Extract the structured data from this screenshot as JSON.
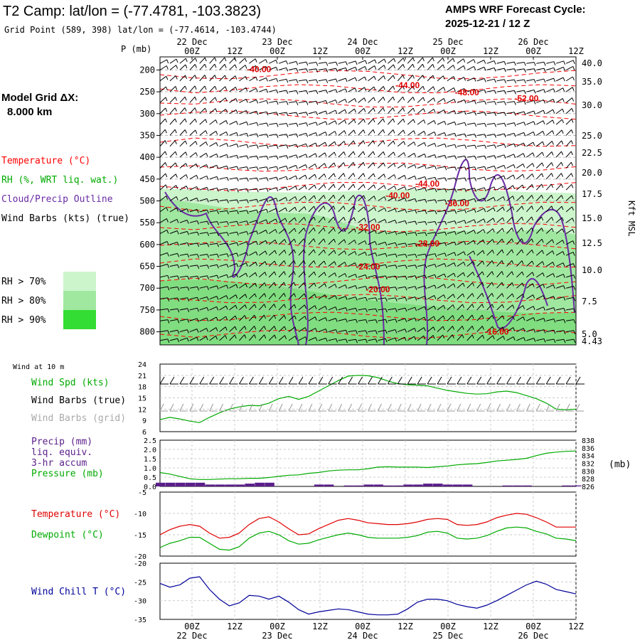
{
  "header": {
    "title": "T2 Camp:  lat/lon = (-77.4781, -103.3823)",
    "subtitle": "Grid Point (589, 398) lat/lon = (-77.4614, -103.4744)",
    "cycle_label": "AMPS WRF Forecast Cycle:",
    "cycle_value": "2025-12-21 / 12  Z"
  },
  "model_grid": {
    "label": "Model Grid ΔX:",
    "value": "8.000 km"
  },
  "colors": {
    "temperature": "#ff0000",
    "rh_text": "#00aa00",
    "cloud_outline": "#6a2ba5",
    "wind_chill": "#00009a",
    "rh70": "#ccf5cc",
    "rh80": "#a0e8a0",
    "rh90": "#33dd33",
    "precip": "#5a1e8a"
  },
  "chart_data": [
    {
      "type": "heatmap",
      "name": "vertical cross-section",
      "ylabel": "P (mb)",
      "right_label": "Kft MSL",
      "top_dates": [
        "22 Dec",
        "23 Dec",
        "24 Dec",
        "25 Dec",
        "26 Dec"
      ],
      "time_ticks": [
        "00Z",
        "12Z",
        "00Z",
        "12Z",
        "00Z",
        "12Z",
        "00Z",
        "12Z",
        "00Z",
        "12Z"
      ],
      "pressure_ticks": [
        200,
        250,
        300,
        350,
        400,
        450,
        500,
        550,
        600,
        650,
        700,
        750,
        800
      ],
      "ylim": [
        170,
        830
      ],
      "kft_ticks": [
        "40.0",
        "35.0",
        "30.0",
        "25.0",
        "22.5",
        "20.0",
        "17.5",
        "15.0",
        "12.5",
        "10.0",
        "7.5",
        "5.0",
        "4.43"
      ],
      "legend": [
        {
          "label": "Temperature (°C)",
          "color": "#ff0000"
        },
        {
          "label": "RH (%, WRT liq. wat.)",
          "color": "#00aa00"
        },
        {
          "label": "Cloud/Precip Outline",
          "color": "#6a2ba5"
        },
        {
          "label": "Wind Barbs (kts) (true)",
          "color": "#000000"
        }
      ],
      "rh_legend": [
        "RH > 70%",
        "RH > 80%",
        "RH > 90%"
      ],
      "isotherm_labels": [
        {
          "text": "-40.00",
          "t": 10,
          "p": 205
        },
        {
          "text": "-44.00",
          "t": 25,
          "p": 242
        },
        {
          "text": "-48.00",
          "t": 31,
          "p": 258
        },
        {
          "text": "-52.00",
          "t": 37,
          "p": 272
        },
        {
          "text": "-44.00",
          "t": 27,
          "p": 467
        },
        {
          "text": "-40.00",
          "t": 24,
          "p": 494
        },
        {
          "text": "-36.00",
          "t": 30,
          "p": 512
        },
        {
          "text": "-32.00",
          "t": 21,
          "p": 567
        },
        {
          "text": "-28.00",
          "t": 27,
          "p": 604
        },
        {
          "text": "-24.00",
          "t": 21,
          "p": 657
        },
        {
          "text": "-20.00",
          "t": 22,
          "p": 709
        },
        {
          "text": "-16.00",
          "t": 34,
          "p": 806
        }
      ]
    },
    {
      "type": "line",
      "name": "wind at 10 m",
      "panel_label": "Wind at 10 m",
      "legend": [
        {
          "label": "Wind Spd (kts)",
          "color": "#00aa00"
        },
        {
          "label": "Wind Barbs (true)",
          "color": "#000000"
        },
        {
          "label": "Wind Barbs (grid)",
          "color": "#aaaaaa"
        }
      ],
      "ylim": [
        6,
        24
      ],
      "y_ticks": [
        6,
        9,
        12,
        15,
        18,
        21,
        24
      ],
      "series": [
        {
          "name": "Wind Spd (kts)",
          "color": "#00aa00",
          "values": [
            9.2,
            9.8,
            9.4,
            8.8,
            8.4,
            9.8,
            11.0,
            12.0,
            12.6,
            13.0,
            12.9,
            13.6,
            14.8,
            15.4,
            14.6,
            15.4,
            16.8,
            18.2,
            19.6,
            20.8,
            21.0,
            20.9,
            20.4,
            19.5,
            18.8,
            18.5,
            18.4,
            18.2,
            17.6,
            17.0,
            16.6,
            16.2,
            16.0,
            16.1,
            16.6,
            16.8,
            16.4,
            15.6,
            14.8,
            13.6,
            12.0,
            11.8,
            12.0
          ]
        }
      ]
    },
    {
      "type": "line",
      "name": "precip and pressure",
      "legend": [
        {
          "label": "Precip (mm)",
          "color": "#5a1e8a"
        },
        {
          "label": "liq. equiv.",
          "color": "#5a1e8a"
        },
        {
          "label": "3-hr accum",
          "color": "#5a1e8a"
        },
        {
          "label": "Pressure (mb)",
          "color": "#00aa00"
        }
      ],
      "y_left_ticks": [
        "0.0",
        "0.5",
        "1.0",
        "1.5",
        "2.0",
        "2.5"
      ],
      "ylim_left": [
        0,
        2.5
      ],
      "y_right_ticks": [
        "826",
        "828",
        "830",
        "832",
        "834",
        "836",
        "838"
      ],
      "ylim_right": [
        826,
        838
      ],
      "right_unit": "(mb)",
      "series": [
        {
          "name": "Pressure (mb)",
          "color": "#00aa00",
          "axis": "right",
          "values": [
            829.6,
            829.2,
            828.6,
            828.0,
            827.8,
            827.8,
            827.9,
            828.0,
            828.0,
            828.1,
            828.1,
            828.3,
            828.6,
            828.9,
            829.0,
            829.4,
            829.6,
            830.0,
            830.2,
            830.3,
            830.3,
            830.6,
            831.0,
            831.1,
            831.0,
            831.0,
            831.0,
            830.9,
            831.1,
            831.3,
            831.6,
            831.8,
            831.9,
            832.2,
            832.6,
            832.8,
            833.0,
            833.3,
            834.0,
            834.6,
            834.9,
            835.1,
            835.2
          ]
        },
        {
          "name": "Precip (mm)",
          "color": "#5a1e8a",
          "axis": "left",
          "type": "bar",
          "values": [
            0.2,
            0.2,
            0.2,
            0.2,
            0.2,
            0.1,
            0.1,
            0.1,
            0.1,
            0.15,
            0.2,
            0.2,
            0.0,
            0.0,
            0.0,
            0.0,
            0.1,
            0.1,
            0.0,
            0.05,
            0.05,
            0.1,
            0.1,
            0.05,
            0.05,
            0.1,
            0.1,
            0.15,
            0.15,
            0.1,
            0.1,
            0.1,
            0.0,
            0.0,
            0.0,
            0.05,
            0.05,
            0.05,
            0.0,
            0.0,
            0.0,
            0.05,
            0.05
          ]
        }
      ]
    },
    {
      "type": "line",
      "name": "temperature and dewpoint",
      "legend": [
        {
          "label": "Temperature (°C)",
          "color": "#e00000"
        },
        {
          "label": "Dewpoint (°C)",
          "color": "#00aa00"
        }
      ],
      "ylim": [
        -20,
        -5
      ],
      "y_ticks": [
        -20,
        -15,
        -10,
        -5
      ],
      "series": [
        {
          "name": "Temperature (°C)",
          "color": "#e00000",
          "values": [
            -15.0,
            -13.8,
            -13.0,
            -12.6,
            -13.0,
            -14.6,
            -15.8,
            -15.6,
            -14.6,
            -12.6,
            -11.2,
            -10.8,
            -12.0,
            -13.6,
            -15.0,
            -14.8,
            -13.6,
            -12.6,
            -11.6,
            -11.2,
            -11.6,
            -12.2,
            -12.4,
            -12.6,
            -12.6,
            -12.4,
            -12.0,
            -11.4,
            -11.2,
            -11.4,
            -12.6,
            -12.8,
            -12.6,
            -12.0,
            -11.0,
            -10.4,
            -10.0,
            -10.2,
            -11.0,
            -12.0,
            -13.2,
            -13.2,
            -13.2
          ]
        },
        {
          "name": "Dewpoint (°C)",
          "color": "#00aa00",
          "values": [
            -18.0,
            -17.0,
            -16.4,
            -15.6,
            -15.6,
            -17.0,
            -18.4,
            -18.6,
            -17.8,
            -15.8,
            -14.6,
            -14.2,
            -15.0,
            -16.4,
            -17.2,
            -17.0,
            -16.2,
            -15.6,
            -15.0,
            -14.6,
            -15.0,
            -15.6,
            -15.8,
            -15.8,
            -15.8,
            -15.6,
            -15.2,
            -14.4,
            -14.2,
            -14.6,
            -15.8,
            -16.0,
            -15.8,
            -15.2,
            -14.2,
            -13.4,
            -13.2,
            -13.4,
            -14.2,
            -14.8,
            -15.8,
            -16.0,
            -16.4
          ]
        }
      ]
    },
    {
      "type": "line",
      "name": "wind chill",
      "legend": [
        {
          "label": "Wind Chill T (°C)",
          "color": "#00009a"
        }
      ],
      "ylim": [
        -35,
        -20
      ],
      "y_ticks": [
        -35,
        -30,
        -25,
        -20
      ],
      "series": [
        {
          "name": "Wind Chill T (°C)",
          "color": "#00009a",
          "values": [
            -25.4,
            -26.4,
            -25.8,
            -24.0,
            -23.6,
            -27.0,
            -29.6,
            -31.4,
            -30.6,
            -28.6,
            -28.8,
            -29.6,
            -28.8,
            -30.4,
            -32.4,
            -33.6,
            -33.0,
            -32.6,
            -32.2,
            -32.4,
            -33.0,
            -33.6,
            -33.8,
            -33.8,
            -33.6,
            -32.2,
            -30.4,
            -29.6,
            -29.6,
            -30.0,
            -31.0,
            -31.6,
            -32.0,
            -31.2,
            -30.0,
            -28.6,
            -27.2,
            -25.8,
            -24.8,
            -25.6,
            -27.0,
            -27.6,
            -28.2
          ]
        }
      ]
    }
  ],
  "bottom_axis": {
    "time_ticks": [
      "00Z",
      "12Z",
      "00Z",
      "12Z",
      "00Z",
      "12Z",
      "00Z",
      "12Z",
      "00Z",
      "12Z"
    ],
    "dates": [
      "22 Dec",
      "23 Dec",
      "24 Dec",
      "25 Dec",
      "26 Dec"
    ]
  }
}
